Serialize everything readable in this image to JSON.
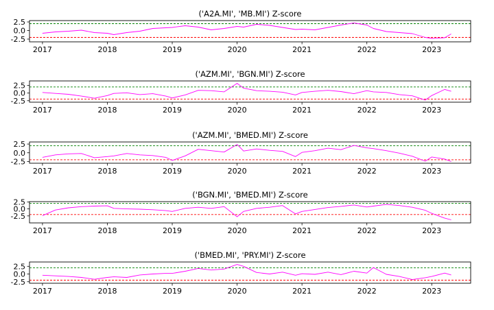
{
  "chart_data": [
    {
      "type": "line",
      "title": "('A2A.MI', 'MB.MI') Z-score",
      "xlabel": "",
      "ylabel": "",
      "x_ticks": [
        "2017",
        "2018",
        "2019",
        "2020",
        "2021",
        "2022",
        "2023"
      ],
      "y_ticks": [
        "2.5",
        "0.0",
        "-2.5"
      ],
      "xlim": [
        2016.8,
        2023.6
      ],
      "ylim": [
        -3.3,
        2.9
      ],
      "thresholds": {
        "upper": 2.0,
        "lower": -2.0,
        "upper_color": "#008000",
        "lower_color": "#ff0000"
      },
      "line_color": "#ff00ff",
      "series": [
        {
          "x": [
            2017.0,
            2017.2,
            2017.4,
            2017.6,
            2017.8,
            2018.0,
            2018.1,
            2018.3,
            2018.5,
            2018.7,
            2018.9,
            2019.0,
            2019.2,
            2019.4,
            2019.6,
            2019.8,
            2020.0,
            2020.1,
            2020.3,
            2020.5,
            2020.7,
            2020.9,
            2021.0,
            2021.2,
            2021.4,
            2021.6,
            2021.8,
            2022.0,
            2022.1,
            2022.3,
            2022.5,
            2022.7,
            2022.9,
            2023.0,
            2023.2,
            2023.3
          ],
          "y": [
            -0.8,
            -0.4,
            -0.2,
            0.1,
            -0.6,
            -0.8,
            -1.2,
            -0.6,
            -0.2,
            0.6,
            0.8,
            0.9,
            1.4,
            1.0,
            0.2,
            0.6,
            1.2,
            1.0,
            1.8,
            1.5,
            0.9,
            0.3,
            0.4,
            0.2,
            0.9,
            1.6,
            2.2,
            1.6,
            0.6,
            -0.3,
            -0.6,
            -0.9,
            -2.0,
            -2.3,
            -2.1,
            -1.0
          ]
        }
      ]
    },
    {
      "type": "line",
      "title": "('AZM.MI', 'BGN.MI') Z-score",
      "xlabel": "",
      "ylabel": "",
      "x_ticks": [
        "2017",
        "2018",
        "2019",
        "2020",
        "2021",
        "2022",
        "2023"
      ],
      "y_ticks": [
        "2.5",
        "0.0",
        "-2.5"
      ],
      "xlim": [
        2016.8,
        2023.6
      ],
      "ylim": [
        -3.0,
        4.0
      ],
      "thresholds": {
        "upper": 2.0,
        "lower": -2.0,
        "upper_color": "#008000",
        "lower_color": "#ff0000"
      },
      "line_color": "#ff00ff",
      "series": [
        {
          "x": [
            2017.0,
            2017.2,
            2017.4,
            2017.6,
            2017.8,
            2018.0,
            2018.1,
            2018.3,
            2018.5,
            2018.7,
            2018.9,
            2019.0,
            2019.2,
            2019.4,
            2019.6,
            2019.8,
            2020.0,
            2020.1,
            2020.3,
            2020.5,
            2020.7,
            2020.9,
            2021.0,
            2021.2,
            2021.4,
            2021.6,
            2021.8,
            2022.0,
            2022.1,
            2022.3,
            2022.5,
            2022.7,
            2022.9,
            2023.0,
            2023.2,
            2023.3
          ],
          "y": [
            0.2,
            -0.1,
            -0.4,
            -1.0,
            -1.7,
            -0.8,
            -0.1,
            0.1,
            -0.5,
            -0.2,
            -1.0,
            -1.6,
            -0.6,
            0.9,
            0.8,
            0.4,
            3.2,
            1.6,
            0.8,
            0.6,
            0.3,
            -0.6,
            0.2,
            0.6,
            0.9,
            0.5,
            -0.2,
            0.8,
            0.4,
            0.2,
            -0.5,
            -0.9,
            -2.3,
            -0.8,
            1.2,
            0.6
          ]
        }
      ]
    },
    {
      "type": "line",
      "title": "('AZM.MI', 'BMED.MI') Z-score",
      "xlabel": "",
      "ylabel": "",
      "x_ticks": [
        "2017",
        "2018",
        "2019",
        "2020",
        "2021",
        "2022",
        "2023"
      ],
      "y_ticks": [
        "2.5",
        "0.0",
        "-2.5"
      ],
      "xlim": [
        2016.8,
        2023.6
      ],
      "ylim": [
        -3.0,
        3.1
      ],
      "thresholds": {
        "upper": 2.0,
        "lower": -2.0,
        "upper_color": "#008000",
        "lower_color": "#ff0000"
      },
      "line_color": "#ff00ff",
      "series": [
        {
          "x": [
            2017.0,
            2017.2,
            2017.4,
            2017.6,
            2017.8,
            2018.0,
            2018.1,
            2018.3,
            2018.5,
            2018.7,
            2018.9,
            2019.0,
            2019.2,
            2019.4,
            2019.6,
            2019.8,
            2020.0,
            2020.1,
            2020.3,
            2020.5,
            2020.7,
            2020.9,
            2021.0,
            2021.2,
            2021.4,
            2021.6,
            2021.8,
            2022.0,
            2022.1,
            2022.3,
            2022.5,
            2022.7,
            2022.9,
            2023.0,
            2023.2,
            2023.3
          ],
          "y": [
            -1.3,
            -0.6,
            -0.3,
            -0.2,
            -1.4,
            -1.1,
            -0.9,
            -0.2,
            -0.6,
            -0.8,
            -1.3,
            -2.2,
            -0.9,
            1.0,
            0.6,
            0.2,
            2.4,
            0.5,
            1.1,
            0.7,
            0.4,
            -1.1,
            0.1,
            0.6,
            1.3,
            0.9,
            2.1,
            1.4,
            1.2,
            0.6,
            -0.1,
            -1.0,
            -2.4,
            -1.2,
            -1.8,
            -2.5
          ]
        }
      ]
    },
    {
      "type": "line",
      "title": "('BGN.MI', 'BMED.MI') Z-score",
      "xlabel": "",
      "ylabel": "",
      "x_ticks": [
        "2017",
        "2018",
        "2019",
        "2020",
        "2021",
        "2022",
        "2023"
      ],
      "y_ticks": [
        "2.5",
        "0.0",
        "-2.5"
      ],
      "xlim": [
        2016.8,
        2023.6
      ],
      "ylim": [
        -5.0,
        2.6
      ],
      "thresholds": {
        "upper": 2.0,
        "lower": -2.0,
        "upper_color": "#008000",
        "lower_color": "#ff0000"
      },
      "line_color": "#ff00ff",
      "series": [
        {
          "x": [
            2017.0,
            2017.2,
            2017.4,
            2017.6,
            2017.8,
            2018.0,
            2018.1,
            2018.3,
            2018.5,
            2018.7,
            2018.9,
            2019.0,
            2019.2,
            2019.4,
            2019.6,
            2019.8,
            2020.0,
            2020.1,
            2020.3,
            2020.5,
            2020.7,
            2020.9,
            2021.0,
            2021.2,
            2021.4,
            2021.6,
            2021.8,
            2022.0,
            2022.1,
            2022.3,
            2022.5,
            2022.7,
            2022.9,
            2023.0,
            2023.2,
            2023.3
          ],
          "y": [
            -2.4,
            -0.4,
            0.4,
            0.8,
            1.0,
            1.1,
            0.2,
            0.0,
            -0.1,
            -0.3,
            -0.6,
            -0.9,
            0.2,
            0.6,
            0.2,
            0.8,
            -2.8,
            -0.9,
            0.2,
            0.6,
            1.2,
            -1.8,
            -0.9,
            -0.2,
            0.5,
            0.9,
            1.4,
            0.7,
            1.0,
            1.6,
            1.2,
            0.6,
            -0.5,
            -1.6,
            -3.3,
            -3.9
          ]
        }
      ]
    },
    {
      "type": "line",
      "title": "('BMED.MI', 'PRY.MI') Z-score",
      "xlabel": "",
      "ylabel": "",
      "x_ticks": [
        "2017",
        "2018",
        "2019",
        "2020",
        "2021",
        "2022",
        "2023"
      ],
      "y_ticks": [
        "2.5",
        "0.0",
        "-2.5"
      ],
      "xlim": [
        2016.8,
        2023.6
      ],
      "ylim": [
        -3.0,
        3.9
      ],
      "thresholds": {
        "upper": 2.0,
        "lower": -2.0,
        "upper_color": "#008000",
        "lower_color": "#ff0000"
      },
      "line_color": "#ff00ff",
      "series": [
        {
          "x": [
            2017.0,
            2017.2,
            2017.4,
            2017.6,
            2017.8,
            2018.0,
            2018.1,
            2018.3,
            2018.5,
            2018.7,
            2018.9,
            2019.0,
            2019.2,
            2019.4,
            2019.6,
            2019.8,
            2020.0,
            2020.1,
            2020.3,
            2020.5,
            2020.7,
            2020.9,
            2021.0,
            2021.2,
            2021.4,
            2021.6,
            2021.8,
            2022.0,
            2022.1,
            2022.3,
            2022.5,
            2022.7,
            2022.9,
            2023.0,
            2023.2,
            2023.3
          ],
          "y": [
            -0.4,
            -0.6,
            -0.8,
            -1.1,
            -1.7,
            -1.1,
            -0.9,
            -1.1,
            -0.3,
            0.0,
            0.2,
            0.2,
            0.9,
            1.8,
            1.3,
            1.6,
            3.1,
            2.5,
            0.5,
            0.0,
            0.6,
            -0.4,
            0.1,
            -0.1,
            0.6,
            -0.2,
            0.9,
            0.3,
            2.1,
            -0.1,
            -0.8,
            -1.8,
            -1.2,
            -0.8,
            0.3,
            -0.3
          ]
        }
      ]
    }
  ]
}
